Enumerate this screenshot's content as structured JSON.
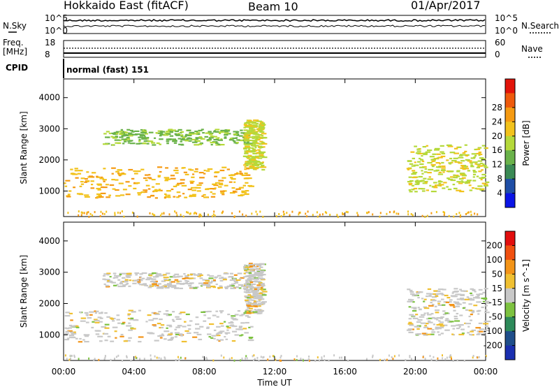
{
  "header": {
    "radar": "Hokkaido East (fitACF)",
    "beam": "Beam 10",
    "date": "01/Apr/2017"
  },
  "top_panels": {
    "nsky_label": "N.Sky",
    "nsky_ticks": [
      "10^5",
      "10^0"
    ],
    "nsearch_label": "N.Search",
    "nsearch_ticks": [
      "10^5",
      "10^0"
    ],
    "freq_label": "Freq.",
    "freq_unit": "[MHz]",
    "freq_ticks": [
      "18",
      "8"
    ],
    "nave_label": "Nave",
    "nave_ticks": [
      "60",
      "0"
    ],
    "cpid_label": "CPID",
    "cpid_value": "normal (fast) 151"
  },
  "chart_data": [
    {
      "type": "heatmap",
      "panel": "power",
      "xlabel": "Time UT",
      "ylabel": "Slant Range [km]",
      "x_ticks": [
        "00:00",
        "04:00",
        "08:00",
        "12:00",
        "16:00",
        "20:00",
        "00:00"
      ],
      "y_ticks": [
        1000,
        2000,
        3000,
        4000
      ],
      "ylim": [
        180,
        4600
      ],
      "xlim_hours": [
        0,
        24
      ],
      "colorbar": {
        "label": "Power [dB]",
        "ticks": [
          4,
          8,
          12,
          16,
          20,
          24,
          28
        ],
        "colors": [
          "#0a14e6",
          "#1f4ea6",
          "#3b8a55",
          "#6ab24a",
          "#b5d93a",
          "#f2c21c",
          "#f59a12",
          "#ee5a0c",
          "#e2140a"
        ]
      },
      "features": [
        {
          "t_start": 0.0,
          "t_end": 10.7,
          "range_start": 800,
          "range_end": 1800,
          "level": 20
        },
        {
          "t_start": 2.2,
          "t_end": 10.6,
          "range_start": 2500,
          "range_end": 3000,
          "level": 14
        },
        {
          "t_start": 10.2,
          "t_end": 11.3,
          "range_start": 1700,
          "range_end": 3300,
          "level": 16
        },
        {
          "t_start": 19.5,
          "t_end": 24.0,
          "range_start": 1000,
          "range_end": 2500,
          "level": 18
        }
      ]
    },
    {
      "type": "heatmap",
      "panel": "velocity",
      "xlabel": "Time UT",
      "ylabel": "Slant Range [km]",
      "x_ticks": [
        "00:00",
        "04:00",
        "08:00",
        "12:00",
        "16:00",
        "20:00",
        "00:00"
      ],
      "y_ticks": [
        1000,
        2000,
        3000,
        4000
      ],
      "ylim": [
        180,
        4600
      ],
      "xlim_hours": [
        0,
        24
      ],
      "colorbar": {
        "label": "Velocity [m s^-1]",
        "ticks": [
          200,
          100,
          50,
          15,
          -15,
          -50,
          -100,
          -200
        ],
        "colors": [
          "#1a2fb0",
          "#1f4e8a",
          "#2d8a5a",
          "#7dc240",
          "#c8c8c8",
          "#f0c032",
          "#f39418",
          "#f05010",
          "#e20e0e"
        ]
      },
      "features": [
        {
          "t_start": 0.0,
          "t_end": 10.7,
          "range_start": 800,
          "range_end": 1800,
          "level": 0
        },
        {
          "t_start": 2.2,
          "t_end": 10.6,
          "range_start": 2500,
          "range_end": 3000,
          "level": -30
        },
        {
          "t_start": 10.2,
          "t_end": 11.3,
          "range_start": 1700,
          "range_end": 3300,
          "level": 0
        },
        {
          "t_start": 19.5,
          "t_end": 24.0,
          "range_start": 1000,
          "range_end": 2500,
          "level": 0
        }
      ]
    }
  ]
}
